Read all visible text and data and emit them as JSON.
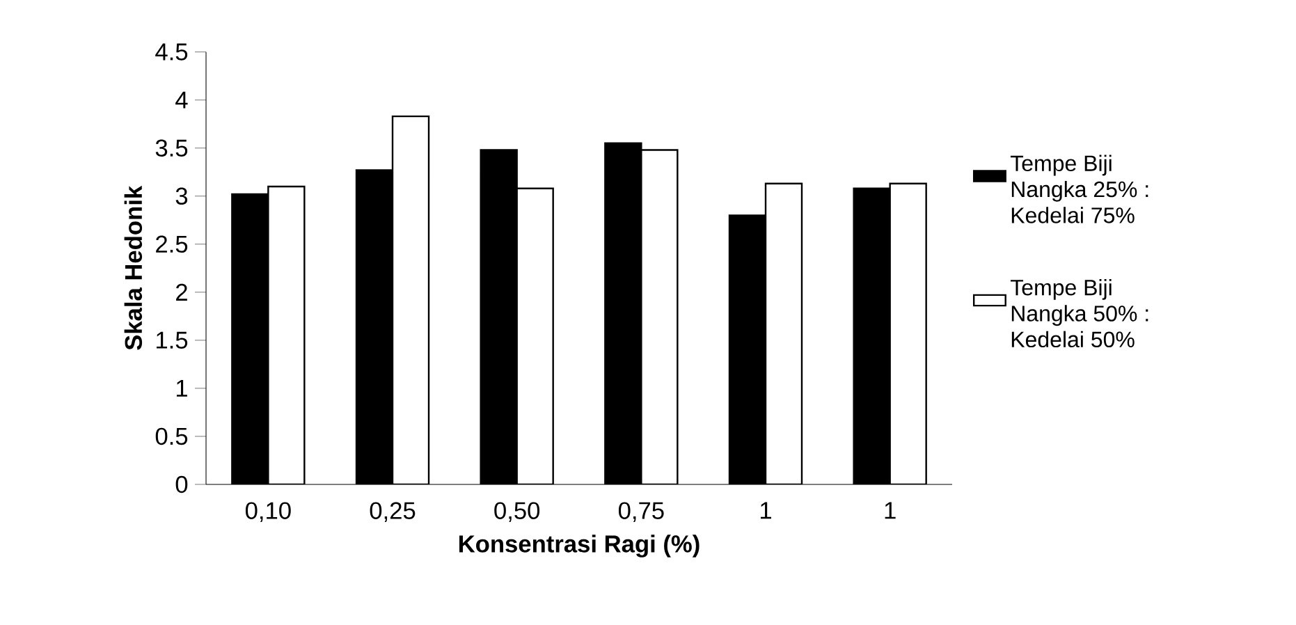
{
  "chart_data": {
    "type": "bar",
    "xlabel": "Konsentrasi Ragi (%)",
    "ylabel": "Skala Hedonik",
    "categories": [
      "0,10",
      "0,25",
      "0,50",
      "0,75",
      "1",
      "1"
    ],
    "series": [
      {
        "name": "Tempe Biji Nangka 25% : Kedelai 75%",
        "color": "#000000",
        "values": [
          3.02,
          3.27,
          3.48,
          3.55,
          2.8,
          3.08
        ]
      },
      {
        "name": "Tempe Biji Nangka 50% : Kedelai 50%",
        "color": "#ffffff",
        "values": [
          3.1,
          3.83,
          3.08,
          3.48,
          3.13,
          3.13
        ]
      }
    ],
    "ylim": [
      0,
      4.5
    ],
    "yticks": [
      0,
      0.5,
      1,
      1.5,
      2,
      2.5,
      3,
      3.5,
      4,
      4.5
    ],
    "legend": "right",
    "grid": false
  }
}
